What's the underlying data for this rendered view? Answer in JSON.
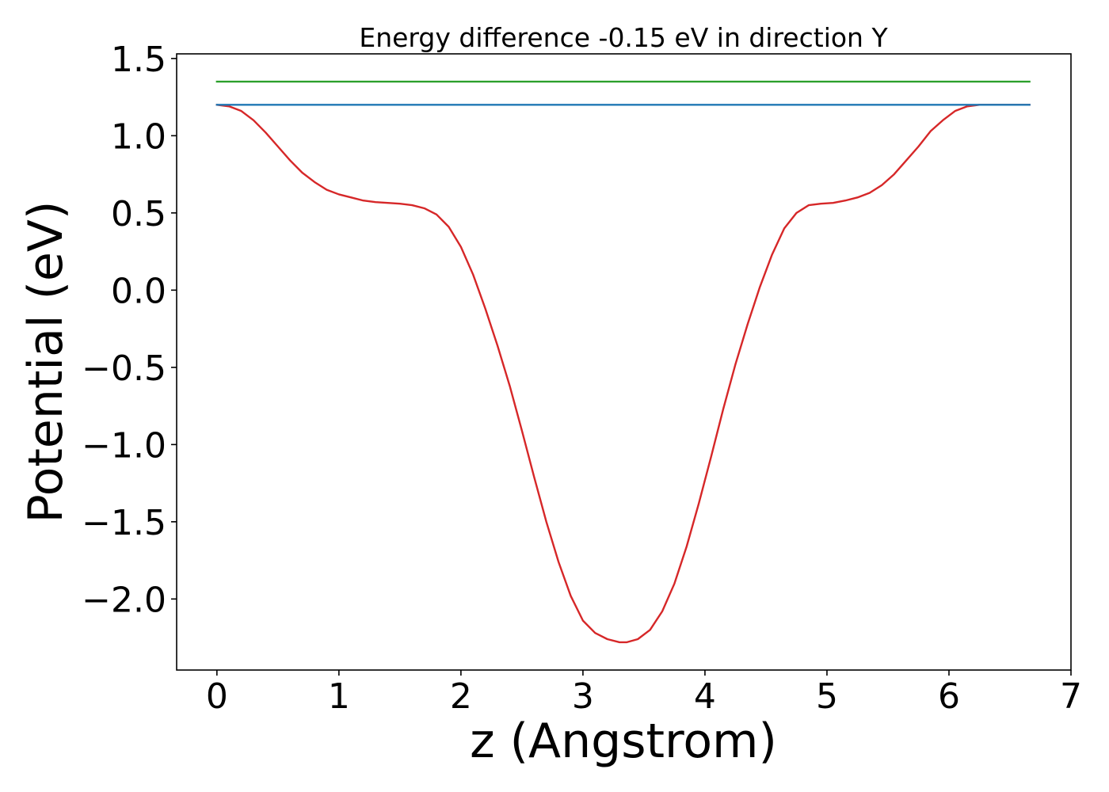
{
  "chart_data": {
    "type": "line",
    "title": "Energy difference -0.15 eV in direction Y",
    "xlabel": "z (Angstrom)",
    "ylabel": "Potential (eV)",
    "xlim": [
      -0.33,
      7.0
    ],
    "ylim": [
      -2.46,
      1.53
    ],
    "xticks": [
      0,
      1,
      2,
      3,
      4,
      5,
      6,
      7
    ],
    "xtick_labels": [
      "0",
      "1",
      "2",
      "3",
      "4",
      "5",
      "6",
      "7"
    ],
    "yticks": [
      -2.0,
      -1.5,
      -1.0,
      -0.5,
      0.0,
      0.5,
      1.0,
      1.5
    ],
    "ytick_labels": [
      "−2.0",
      "−1.5",
      "−1.0",
      "−0.5",
      "0.0",
      "0.5",
      "1.0",
      "1.5"
    ],
    "grid": false,
    "series": [
      {
        "color": "#d62728",
        "x": [
          0,
          0.1,
          0.2,
          0.3,
          0.4,
          0.5,
          0.6,
          0.7,
          0.8,
          0.9,
          1.0,
          1.1,
          1.2,
          1.3,
          1.4,
          1.5,
          1.6,
          1.7,
          1.8,
          1.9,
          2.0,
          2.1,
          2.2,
          2.3,
          2.4,
          2.5,
          2.6,
          2.7,
          2.8,
          2.9,
          3.0,
          3.1,
          3.2,
          3.3,
          3.36,
          3.45,
          3.55,
          3.65,
          3.75,
          3.85,
          3.95,
          4.05,
          4.15,
          4.25,
          4.35,
          4.45,
          4.55,
          4.65,
          4.75,
          4.85,
          4.95,
          5.05,
          5.15,
          5.25,
          5.35,
          5.45,
          5.55,
          5.65,
          5.75,
          5.85,
          5.95,
          6.05,
          6.15,
          6.25,
          6.35,
          6.45,
          6.55,
          6.66
        ],
        "y": [
          1.2,
          1.19,
          1.16,
          1.1,
          1.02,
          0.93,
          0.84,
          0.76,
          0.7,
          0.65,
          0.62,
          0.6,
          0.58,
          0.57,
          0.565,
          0.56,
          0.55,
          0.53,
          0.49,
          0.41,
          0.28,
          0.1,
          -0.12,
          -0.36,
          -0.62,
          -0.91,
          -1.21,
          -1.5,
          -1.76,
          -1.98,
          -2.14,
          -2.22,
          -2.26,
          -2.28,
          -2.28,
          -2.26,
          -2.2,
          -2.08,
          -1.9,
          -1.66,
          -1.38,
          -1.08,
          -0.77,
          -0.48,
          -0.22,
          0.02,
          0.23,
          0.4,
          0.5,
          0.55,
          0.56,
          0.565,
          0.58,
          0.6,
          0.63,
          0.68,
          0.75,
          0.84,
          0.93,
          1.03,
          1.1,
          1.16,
          1.19,
          1.2,
          1.2,
          1.2,
          1.2,
          1.2
        ]
      },
      {
        "color": "#1f77b4",
        "x": [
          0,
          6.66
        ],
        "y": [
          1.2,
          1.2
        ]
      },
      {
        "color": "#2ca02c",
        "x": [
          0,
          6.66
        ],
        "y": [
          1.35,
          1.35
        ]
      }
    ]
  }
}
